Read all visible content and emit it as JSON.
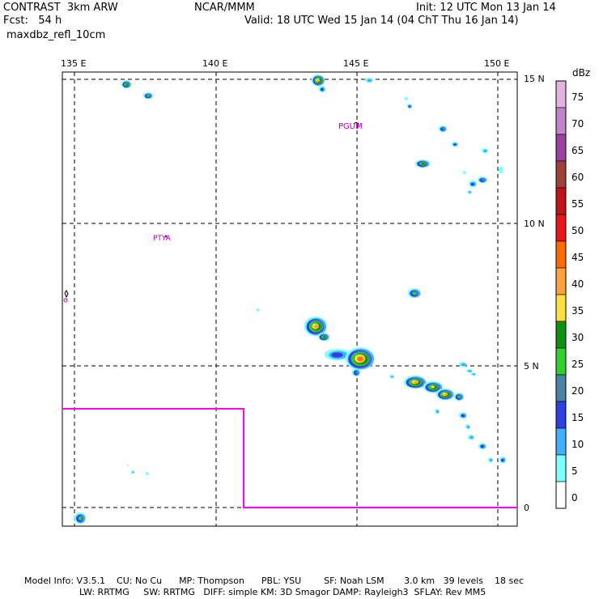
{
  "header": {
    "model": "CONTRAST  3km ARW",
    "org": "NCAR/MMM",
    "init": "Init: 12 UTC Mon 13 Jan 14",
    "fcst": "Fcst:   54 h",
    "valid": "Valid: 18 UTC Wed 15 Jan 14 (04 ChT Thu 16 Jan 14)",
    "field": "maxdbz_refl_10cm"
  },
  "axes": {
    "lon_labels": [
      "135 E",
      "140 E",
      "145 E",
      "150 E"
    ],
    "lat_labels": [
      "15 N",
      "10 N",
      "5 N",
      "0"
    ]
  },
  "places": [
    {
      "name": "PGUM"
    },
    {
      "name": "PTYA"
    }
  ],
  "colorbar": {
    "unit": "dBz",
    "levels": [
      "75",
      "70",
      "65",
      "60",
      "55",
      "50",
      "45",
      "40",
      "35",
      "30",
      "25",
      "20",
      "15",
      "10",
      "5",
      "0"
    ],
    "colors": [
      "#e6b3e0",
      "#c084c8",
      "#9b3fa3",
      "#a0403d",
      "#c0141a",
      "#e8141a",
      "#ff6a00",
      "#ffa040",
      "#ffe040",
      "#109010",
      "#30d030",
      "#4a82a6",
      "#3040e0",
      "#40b0ff",
      "#80ffff",
      "#ffffff"
    ]
  },
  "footer": {
    "line1": "Model Info: V3.5.1    CU: No Cu      MP: Thompson      PBL: YSU        SF: Noah LSM       3.0 km   39 levels    18 sec",
    "line2": "LW: RRTMG     SW: RRTMG   DIFF: simple KM: 3D Smagor DAMP: Rayleigh3  SFLAY: Rev MM5"
  }
}
